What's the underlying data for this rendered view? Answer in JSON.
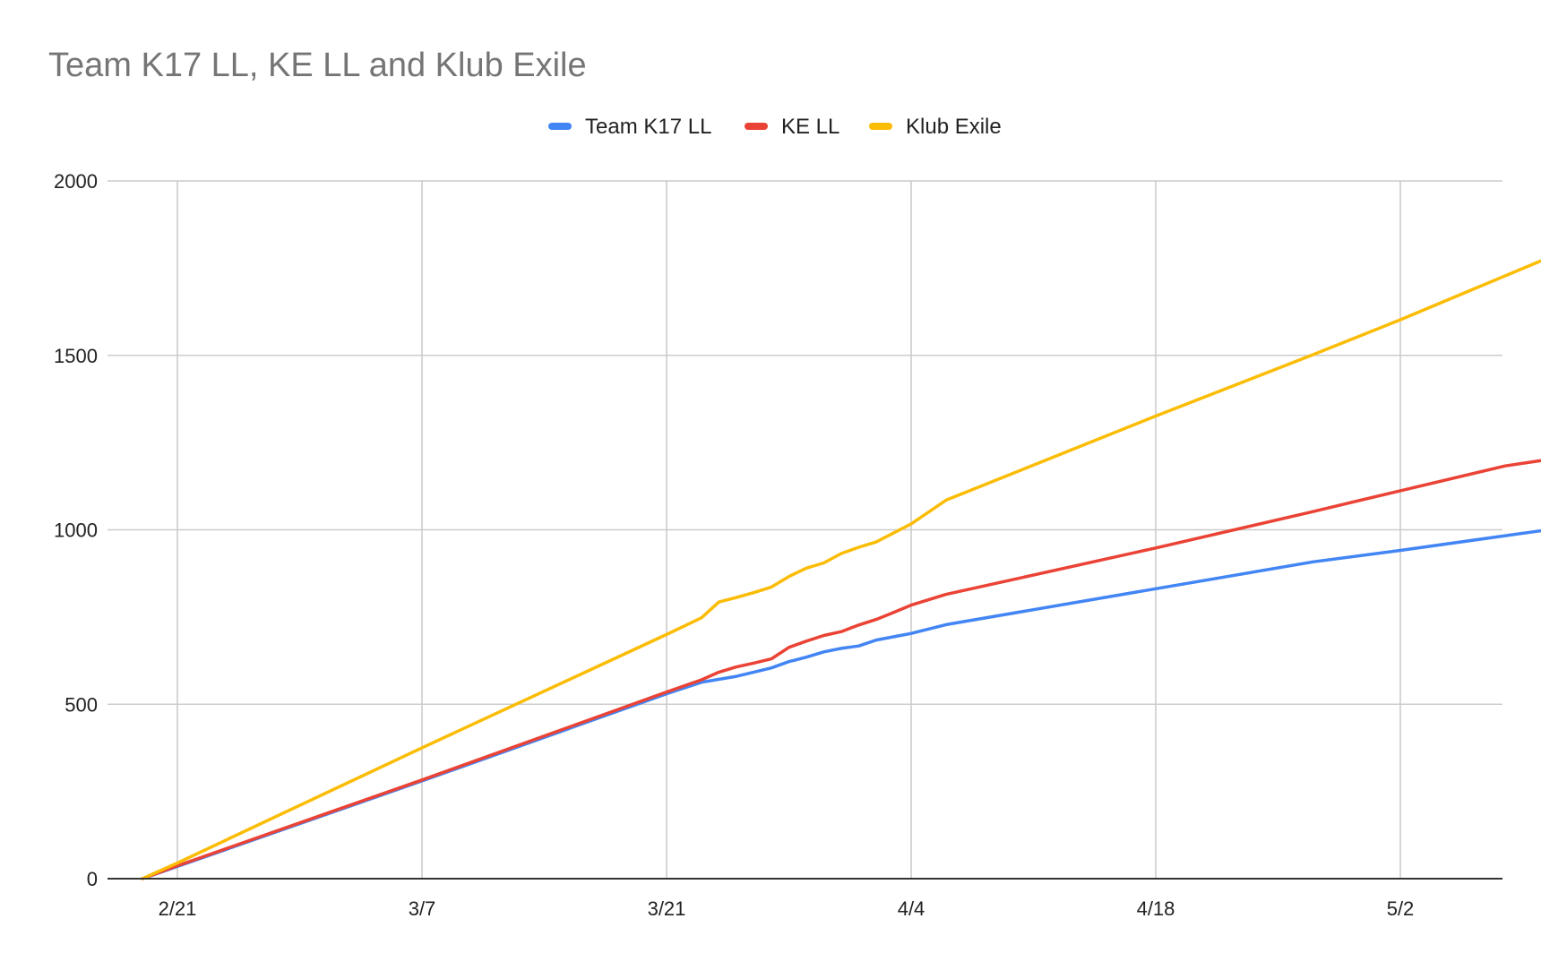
{
  "chart_data": {
    "type": "line",
    "title": "Team K17 LL, KE LL and Klub Exile",
    "xlabel": "",
    "ylabel": "",
    "x_range": [
      "2/18",
      "5/8"
    ],
    "ylim": [
      0,
      2000
    ],
    "x_ticks": [
      {
        "label": "2/21",
        "date": "2/21"
      },
      {
        "label": "3/7",
        "date": "3/7"
      },
      {
        "label": "3/21",
        "date": "3/21"
      },
      {
        "label": "4/4",
        "date": "4/4"
      },
      {
        "label": "4/18",
        "date": "4/18"
      },
      {
        "label": "5/2",
        "date": "5/2"
      }
    ],
    "y_ticks": [
      0,
      500,
      1000,
      1500,
      2000
    ],
    "grid": true,
    "legend_position": "top",
    "series": [
      {
        "name": "Team K17 LL",
        "color": "#4285f4",
        "points": [
          {
            "x": "2/19",
            "y": 0
          },
          {
            "x": "2/21",
            "y": 35
          },
          {
            "x": "3/7",
            "y": 280
          },
          {
            "x": "3/21",
            "y": 530
          },
          {
            "x": "3/23",
            "y": 563
          },
          {
            "x": "3/25",
            "y": 580
          },
          {
            "x": "3/26",
            "y": 592
          },
          {
            "x": "3/27",
            "y": 604
          },
          {
            "x": "3/28",
            "y": 622
          },
          {
            "x": "3/29",
            "y": 635
          },
          {
            "x": "3/30",
            "y": 650
          },
          {
            "x": "3/31",
            "y": 660
          },
          {
            "x": "4/1",
            "y": 667
          },
          {
            "x": "4/2",
            "y": 684
          },
          {
            "x": "4/4",
            "y": 703
          },
          {
            "x": "4/6",
            "y": 728
          },
          {
            "x": "4/18",
            "y": 831
          },
          {
            "x": "4/27",
            "y": 908
          },
          {
            "x": "5/2",
            "y": 941
          },
          {
            "x": "5/10",
            "y": 997
          }
        ]
      },
      {
        "name": "KE LL",
        "color": "#ea4335",
        "points": [
          {
            "x": "2/19",
            "y": 0
          },
          {
            "x": "2/21",
            "y": 37
          },
          {
            "x": "3/7",
            "y": 283
          },
          {
            "x": "3/21",
            "y": 535
          },
          {
            "x": "3/23",
            "y": 570
          },
          {
            "x": "3/24",
            "y": 592
          },
          {
            "x": "3/25",
            "y": 607
          },
          {
            "x": "3/26",
            "y": 618
          },
          {
            "x": "3/27",
            "y": 630
          },
          {
            "x": "3/28",
            "y": 663
          },
          {
            "x": "3/29",
            "y": 681
          },
          {
            "x": "3/30",
            "y": 697
          },
          {
            "x": "3/31",
            "y": 708
          },
          {
            "x": "4/1",
            "y": 727
          },
          {
            "x": "4/2",
            "y": 743
          },
          {
            "x": "4/3",
            "y": 763
          },
          {
            "x": "4/4",
            "y": 784
          },
          {
            "x": "4/6",
            "y": 815
          },
          {
            "x": "4/18",
            "y": 948
          },
          {
            "x": "4/27",
            "y": 1052
          },
          {
            "x": "5/2",
            "y": 1112
          },
          {
            "x": "5/8",
            "y": 1183
          },
          {
            "x": "5/10",
            "y": 1198
          }
        ]
      },
      {
        "name": "Klub Exile",
        "color": "#fbbc04",
        "points": [
          {
            "x": "2/19",
            "y": 0
          },
          {
            "x": "2/21",
            "y": 45
          },
          {
            "x": "3/7",
            "y": 375
          },
          {
            "x": "3/21",
            "y": 700
          },
          {
            "x": "3/23",
            "y": 748
          },
          {
            "x": "3/24",
            "y": 793
          },
          {
            "x": "3/25",
            "y": 806
          },
          {
            "x": "3/26",
            "y": 820
          },
          {
            "x": "3/27",
            "y": 836
          },
          {
            "x": "3/28",
            "y": 866
          },
          {
            "x": "3/29",
            "y": 890
          },
          {
            "x": "3/30",
            "y": 905
          },
          {
            "x": "3/31",
            "y": 932
          },
          {
            "x": "4/1",
            "y": 950
          },
          {
            "x": "4/2",
            "y": 965
          },
          {
            "x": "4/4",
            "y": 1017
          },
          {
            "x": "4/6",
            "y": 1085
          },
          {
            "x": "4/18",
            "y": 1326
          },
          {
            "x": "4/27",
            "y": 1502
          },
          {
            "x": "5/2",
            "y": 1602
          },
          {
            "x": "5/10",
            "y": 1770
          }
        ]
      }
    ]
  }
}
